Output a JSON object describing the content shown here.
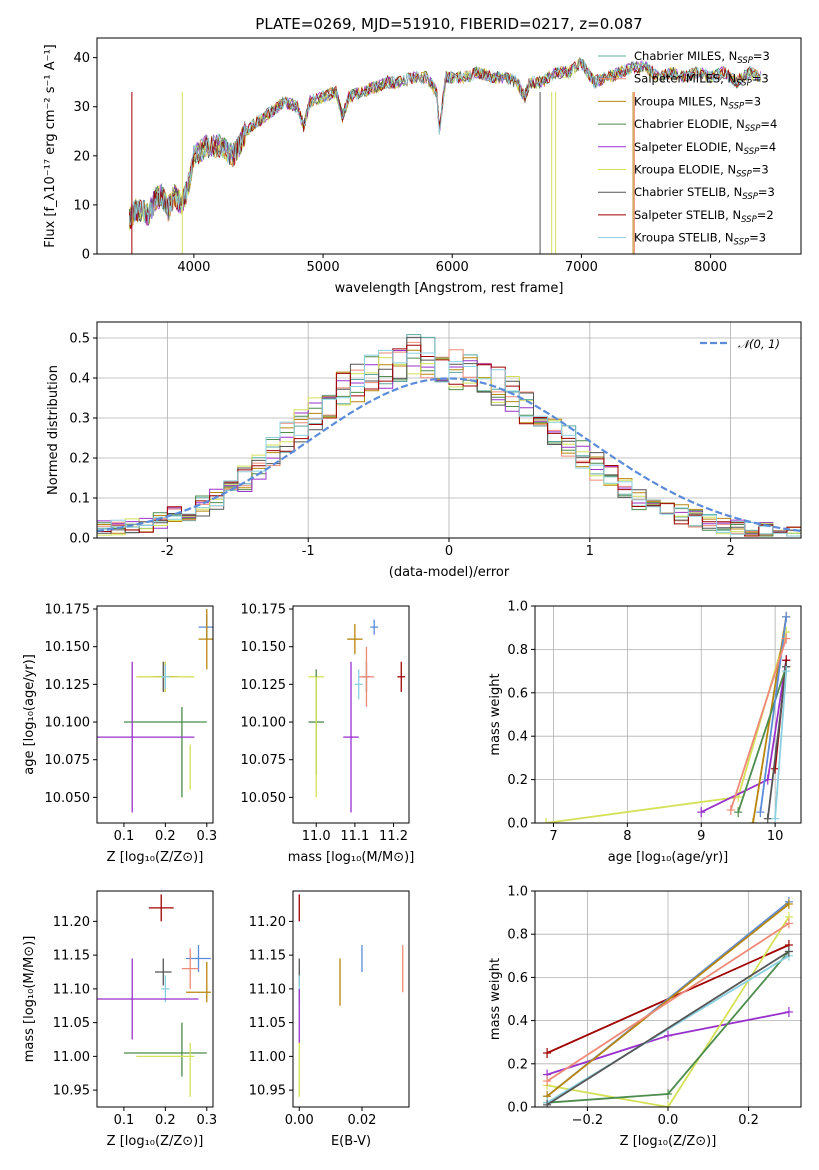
{
  "figure_title": "PLATE=0269, MJD=51910, FIBERID=0217, z=0.087",
  "colors": {
    "c_miles": "#5aa8a0",
    "s_miles": "#ef8a78",
    "k_miles": "#b8860b",
    "c_elodie": "#4c8c4c",
    "s_elodie": "#9932cc",
    "k_elodie": "#d4e157",
    "c_stelib": "#555555",
    "s_stelib": "#a00000",
    "k_stelib": "#8ad0e0",
    "normal": "#5b8bd9"
  },
  "chart_data": [
    {
      "id": "spectrum",
      "type": "line",
      "title": "PLATE=0269, MJD=51910, FIBERID=0217, z=0.087",
      "xlabel": "wavelength [Angstrom, rest frame]",
      "ylabel": "Flux [f_λ10⁻¹⁷ erg cm⁻² s⁻¹ A⁻¹]",
      "xlim": [
        3250,
        8700
      ],
      "ylim": [
        0,
        44
      ],
      "xticks": [
        4000,
        5000,
        6000,
        7000,
        8000
      ],
      "yticks": [
        0,
        10,
        20,
        30,
        40
      ],
      "legend_position": "top-right",
      "legend": [
        {
          "label": "Chabrier MILES, N",
          "sub": "SSP",
          "suffix": "=3",
          "color": "c_miles"
        },
        {
          "label": "Salpeter MILES, N",
          "sub": "SSP",
          "suffix": "=3",
          "color": "s_miles"
        },
        {
          "label": "Kroupa MILES, N",
          "sub": "SSP",
          "suffix": "=3",
          "color": "k_miles"
        },
        {
          "label": "Chabrier ELODIE, N",
          "sub": "SSP",
          "suffix": "=4",
          "color": "c_elodie"
        },
        {
          "label": "Salpeter ELODIE, N",
          "sub": "SSP",
          "suffix": "=4",
          "color": "s_elodie"
        },
        {
          "label": "Kroupa ELODIE, N",
          "sub": "SSP",
          "suffix": "=3",
          "color": "k_elodie"
        },
        {
          "label": "Chabrier STELIB, N",
          "sub": "SSP",
          "suffix": "=3",
          "color": "c_stelib"
        },
        {
          "label": "Salpeter STELIB, N",
          "sub": "SSP",
          "suffix": "=2",
          "color": "s_stelib"
        },
        {
          "label": "Kroupa STELIB, N",
          "sub": "SSP",
          "suffix": "=3",
          "color": "k_stelib"
        }
      ],
      "spectrum_points": [
        [
          3500,
          7
        ],
        [
          3550,
          9
        ],
        [
          3600,
          9
        ],
        [
          3650,
          8
        ],
        [
          3700,
          11
        ],
        [
          3750,
          12
        ],
        [
          3800,
          9
        ],
        [
          3850,
          12
        ],
        [
          3900,
          10
        ],
        [
          3950,
          13
        ],
        [
          4000,
          20
        ],
        [
          4100,
          22
        ],
        [
          4200,
          22
        ],
        [
          4300,
          20
        ],
        [
          4350,
          22
        ],
        [
          4400,
          25
        ],
        [
          4500,
          27
        ],
        [
          4600,
          29
        ],
        [
          4700,
          31
        ],
        [
          4800,
          30
        ],
        [
          4850,
          26
        ],
        [
          4900,
          31
        ],
        [
          5000,
          32
        ],
        [
          5100,
          33
        ],
        [
          5150,
          28
        ],
        [
          5200,
          32
        ],
        [
          5300,
          33
        ],
        [
          5400,
          34
        ],
        [
          5500,
          35
        ],
        [
          5600,
          35
        ],
        [
          5700,
          36
        ],
        [
          5800,
          36
        ],
        [
          5880,
          33
        ],
        [
          5900,
          25
        ],
        [
          5950,
          36
        ],
        [
          6000,
          36
        ],
        [
          6100,
          36
        ],
        [
          6200,
          37
        ],
        [
          6300,
          36
        ],
        [
          6400,
          36
        ],
        [
          6500,
          35
        ],
        [
          6563,
          32
        ],
        [
          6600,
          35
        ],
        [
          6700,
          35
        ],
        [
          6800,
          37
        ],
        [
          6900,
          37
        ],
        [
          7000,
          39
        ],
        [
          7050,
          37
        ],
        [
          7100,
          35
        ],
        [
          7200,
          36
        ],
        [
          7300,
          37
        ],
        [
          7400,
          38
        ],
        [
          7500,
          38
        ],
        [
          7600,
          36
        ],
        [
          7700,
          37
        ],
        [
          7800,
          36
        ],
        [
          7900,
          37
        ],
        [
          8000,
          36
        ],
        [
          8100,
          37
        ],
        [
          8200,
          35
        ],
        [
          8300,
          37
        ],
        [
          8400,
          36
        ]
      ],
      "drop_lines": [
        {
          "x": 3520,
          "color": "s_stelib"
        },
        {
          "x": 3910,
          "color": "k_elodie"
        },
        {
          "x": 6680,
          "color": "c_stelib"
        },
        {
          "x": 6770,
          "color": "k_elodie"
        },
        {
          "x": 6800,
          "color": "k_elodie"
        },
        {
          "x": 7400,
          "color": "k_miles"
        },
        {
          "x": 7410,
          "color": "s_miles"
        }
      ]
    },
    {
      "id": "residuals",
      "type": "line",
      "xlabel": "(data-model)/error",
      "ylabel": "Normed distribution",
      "xlim": [
        -2.5,
        2.5
      ],
      "ylim": [
        0,
        0.54
      ],
      "xticks": [
        -2,
        -1,
        0,
        1,
        2
      ],
      "yticks": [
        0.0,
        0.1,
        0.2,
        0.3,
        0.4,
        0.5
      ],
      "grid": true,
      "legend_position": "top-right",
      "legend": [
        {
          "label": "𝒩(0, 1)",
          "color": "normal"
        }
      ],
      "hist_base": [
        0.025,
        0.025,
        0.03,
        0.035,
        0.045,
        0.055,
        0.065,
        0.08,
        0.1,
        0.125,
        0.15,
        0.18,
        0.215,
        0.25,
        0.28,
        0.31,
        0.34,
        0.37,
        0.39,
        0.41,
        0.42,
        0.44,
        0.46,
        0.45,
        0.44,
        0.42,
        0.41,
        0.4,
        0.38,
        0.36,
        0.33,
        0.3,
        0.27,
        0.24,
        0.21,
        0.18,
        0.15,
        0.12,
        0.1,
        0.08,
        0.07,
        0.06,
        0.05,
        0.04,
        0.03,
        0.025,
        0.02,
        0.02,
        0.015,
        0.015
      ]
    },
    {
      "id": "age_vs_Z",
      "type": "scatter",
      "xlabel": "Z [log₁₀(Z/Z⊙)]",
      "ylabel": "age  [log₁₀(age/yr)]",
      "xlim": [
        0.035,
        0.315
      ],
      "ylim": [
        10.033,
        10.177
      ],
      "xticks": [
        0.1,
        0.2,
        0.3
      ],
      "yticks": [
        10.05,
        10.075,
        10.1,
        10.125,
        10.15,
        10.175
      ],
      "points": [
        {
          "x": 0.3,
          "y": 10.163,
          "xerr": 0.02,
          "yerr": 0.008,
          "color": "normal"
        },
        {
          "x": 0.3,
          "y": 10.155,
          "xerr": 0.02,
          "yerr": 0.02,
          "color": "k_miles"
        },
        {
          "x": 0.2,
          "y": 10.13,
          "xerr": 0.03,
          "yerr": 0.01,
          "color": "s_stelib"
        },
        {
          "x": 0.195,
          "y": 10.13,
          "xerr": 0.01,
          "yerr": 0.01,
          "color": "c_stelib"
        },
        {
          "x": 0.2,
          "y": 10.13,
          "xerr": 0.07,
          "yerr": 0.01,
          "color": "k_elodie"
        },
        {
          "x": 0.2,
          "y": 10.13,
          "xerr": 0.01,
          "yerr": 0.008,
          "color": "k_stelib"
        },
        {
          "x": 0.2,
          "y": 10.1,
          "xerr": 0.1,
          "yerr": 0.0,
          "color": "c_elodie"
        },
        {
          "x": 0.24,
          "y": 10.08,
          "xerr": 0.0,
          "yerr": 0.03,
          "color": "c_elodie"
        },
        {
          "x": 0.12,
          "y": 10.09,
          "xerr": 0.15,
          "yerr": 0.05,
          "color": "s_elodie"
        },
        {
          "x": 0.26,
          "y": 10.07,
          "xerr": 0.0,
          "yerr": 0.015,
          "color": "k_elodie"
        }
      ]
    },
    {
      "id": "age_vs_mass",
      "type": "scatter",
      "xlabel": "mass [log₁₀(M/M⊙)]",
      "ylabel": "",
      "xlim": [
        10.94,
        11.24
      ],
      "ylim": [
        10.033,
        10.177
      ],
      "xticks": [
        11.0,
        11.1,
        11.2
      ],
      "yticks": [
        10.05,
        10.075,
        10.1,
        10.125,
        10.15,
        10.175
      ],
      "points": [
        {
          "x": 11.15,
          "y": 10.163,
          "xerr": 0.01,
          "yerr": 0.005,
          "color": "normal"
        },
        {
          "x": 11.1,
          "y": 10.155,
          "xerr": 0.02,
          "yerr": 0.01,
          "color": "k_miles"
        },
        {
          "x": 11.22,
          "y": 10.13,
          "xerr": 0.01,
          "yerr": 0.01,
          "color": "s_stelib"
        },
        {
          "x": 11.13,
          "y": 10.13,
          "xerr": 0.01,
          "yerr": 0.01,
          "color": "c_stelib"
        },
        {
          "x": 11.13,
          "y": 10.13,
          "xerr": 0.02,
          "yerr": 0.02,
          "color": "s_miles"
        },
        {
          "x": 11.11,
          "y": 10.125,
          "xerr": 0.01,
          "yerr": 0.01,
          "color": "k_stelib"
        },
        {
          "x": 11.0,
          "y": 10.13,
          "xerr": 0.02,
          "yerr": 0.0,
          "color": "k_elodie"
        },
        {
          "x": 11.0,
          "y": 10.1,
          "xerr": 0.02,
          "yerr": 0.035,
          "color": "c_elodie"
        },
        {
          "x": 11.09,
          "y": 10.09,
          "xerr": 0.02,
          "yerr": 0.05,
          "color": "s_elodie"
        },
        {
          "x": 11.0,
          "y": 10.09,
          "xerr": 0.0,
          "yerr": 0.04,
          "color": "k_elodie"
        }
      ]
    },
    {
      "id": "mw_vs_age",
      "type": "line",
      "xlabel": "age  [log₁₀(age/yr)]",
      "ylabel": "mass weight",
      "xlim": [
        6.75,
        10.35
      ],
      "ylim": [
        0,
        1.0
      ],
      "xticks": [
        7,
        8,
        9,
        10
      ],
      "yticks": [
        0.0,
        0.2,
        0.4,
        0.6,
        0.8,
        1.0
      ],
      "grid": true,
      "series": [
        {
          "color": "k_elodie",
          "x": [
            6.9,
            9.5,
            10.15
          ],
          "y": [
            0.0,
            0.12,
            0.88
          ]
        },
        {
          "color": "s_elodie",
          "x": [
            9.0,
            9.9,
            10.15
          ],
          "y": [
            0.05,
            0.2,
            0.75
          ]
        },
        {
          "color": "k_miles",
          "x": [
            9.7,
            10.15
          ],
          "y": [
            0.0,
            0.95
          ]
        },
        {
          "color": "s_stelib",
          "x": [
            10.0,
            10.15
          ],
          "y": [
            0.25,
            0.75
          ]
        },
        {
          "color": "c_elodie",
          "x": [
            9.5,
            10.15
          ],
          "y": [
            0.05,
            0.72
          ]
        },
        {
          "color": "normal",
          "x": [
            9.8,
            10.15
          ],
          "y": [
            0.05,
            0.95
          ]
        },
        {
          "color": "s_miles",
          "x": [
            9.4,
            10.15
          ],
          "y": [
            0.06,
            0.85
          ]
        },
        {
          "color": "c_stelib",
          "x": [
            9.9,
            10.15
          ],
          "y": [
            0.02,
            0.72
          ]
        },
        {
          "color": "k_stelib",
          "x": [
            10.0,
            10.15
          ],
          "y": [
            0.02,
            0.7
          ]
        }
      ]
    },
    {
      "id": "mass_vs_Z",
      "type": "scatter",
      "xlabel": "Z [log₁₀(Z/Z⊙)]",
      "ylabel": "mass [log₁₀(M/M⊙)]",
      "xlim": [
        0.035,
        0.315
      ],
      "ylim": [
        10.925,
        11.245
      ],
      "xticks": [
        0.1,
        0.2,
        0.3
      ],
      "yticks": [
        10.95,
        11.0,
        11.05,
        11.1,
        11.15,
        11.2
      ],
      "points": [
        {
          "x": 0.19,
          "y": 11.22,
          "xerr": 0.03,
          "yerr": 0.02,
          "color": "s_stelib"
        },
        {
          "x": 0.28,
          "y": 11.145,
          "xerr": 0.03,
          "yerr": 0.02,
          "color": "normal"
        },
        {
          "x": 0.26,
          "y": 11.13,
          "xerr": 0.02,
          "yerr": 0.03,
          "color": "s_miles"
        },
        {
          "x": 0.195,
          "y": 11.125,
          "xerr": 0.02,
          "yerr": 0.02,
          "color": "c_stelib"
        },
        {
          "x": 0.3,
          "y": 11.11,
          "xerr": 0.0,
          "yerr": 0.03,
          "color": "k_miles"
        },
        {
          "x": 0.28,
          "y": 11.095,
          "xerr": 0.03,
          "yerr": 0.0,
          "color": "k_miles"
        },
        {
          "x": 0.2,
          "y": 11.1,
          "xerr": 0.01,
          "yerr": 0.02,
          "color": "k_stelib"
        },
        {
          "x": 0.12,
          "y": 11.085,
          "xerr": 0.16,
          "yerr": 0.06,
          "color": "s_elodie"
        },
        {
          "x": 0.2,
          "y": 11.005,
          "xerr": 0.1,
          "yerr": 0.0,
          "color": "c_elodie"
        },
        {
          "x": 0.24,
          "y": 11.01,
          "xerr": 0.0,
          "yerr": 0.04,
          "color": "c_elodie"
        },
        {
          "x": 0.2,
          "y": 11.0,
          "xerr": 0.07,
          "yerr": 0.0,
          "color": "k_elodie"
        },
        {
          "x": 0.26,
          "y": 10.98,
          "xerr": 0.0,
          "yerr": 0.04,
          "color": "k_elodie"
        }
      ]
    },
    {
      "id": "mass_vs_ebv",
      "type": "scatter",
      "xlabel": "E(B-V)",
      "ylabel": "",
      "xlim": [
        -0.002,
        0.035
      ],
      "ylim": [
        10.925,
        11.245
      ],
      "xticks": [
        0.0,
        0.02
      ],
      "yticks": [
        10.95,
        11.0,
        11.05,
        11.1,
        11.15,
        11.2
      ],
      "points": [
        {
          "x": 0.0,
          "y": 11.22,
          "xerr": 0,
          "yerr": 0.02,
          "color": "s_stelib"
        },
        {
          "x": 0.02,
          "y": 11.145,
          "xerr": 0,
          "yerr": 0.02,
          "color": "normal"
        },
        {
          "x": 0.013,
          "y": 11.11,
          "xerr": 0,
          "yerr": 0.035,
          "color": "k_miles"
        },
        {
          "x": 0.033,
          "y": 11.13,
          "xerr": 0,
          "yerr": 0.035,
          "color": "s_miles"
        },
        {
          "x": 0.0,
          "y": 11.125,
          "xerr": 0,
          "yerr": 0.02,
          "color": "c_stelib"
        },
        {
          "x": 0.0,
          "y": 11.1,
          "xerr": 0,
          "yerr": 0.02,
          "color": "k_stelib"
        },
        {
          "x": 0.0,
          "y": 11.06,
          "xerr": 0,
          "yerr": 0.04,
          "color": "s_elodie"
        },
        {
          "x": 0.0,
          "y": 10.98,
          "xerr": 0,
          "yerr": 0.04,
          "color": "k_elodie"
        }
      ]
    },
    {
      "id": "mw_vs_Z",
      "type": "line",
      "xlabel": "Z [log₁₀(Z/Z⊙)]",
      "ylabel": "mass weight",
      "xlim": [
        -0.33,
        0.33
      ],
      "ylim": [
        0,
        1.0
      ],
      "xticks": [
        -0.2,
        0.0,
        0.2
      ],
      "xticklabels": [
        "−0.2",
        "0.0",
        "0.2"
      ],
      "yticks": [
        0.0,
        0.2,
        0.4,
        0.6,
        0.8,
        1.0
      ],
      "grid": true,
      "series": [
        {
          "color": "s_stelib",
          "x": [
            -0.3,
            0.3
          ],
          "y": [
            0.25,
            0.75
          ]
        },
        {
          "color": "s_elodie",
          "x": [
            -0.3,
            0.0,
            0.3
          ],
          "y": [
            0.15,
            0.33,
            0.44
          ]
        },
        {
          "color": "k_elodie",
          "x": [
            -0.3,
            0.0,
            0.3
          ],
          "y": [
            0.1,
            0.0,
            0.88
          ]
        },
        {
          "color": "c_elodie",
          "x": [
            -0.3,
            0.0,
            0.3
          ],
          "y": [
            0.02,
            0.06,
            0.72
          ]
        },
        {
          "color": "normal",
          "x": [
            -0.3,
            0.3
          ],
          "y": [
            0.05,
            0.95
          ]
        },
        {
          "color": "k_miles",
          "x": [
            -0.3,
            0.3
          ],
          "y": [
            0.05,
            0.94
          ]
        },
        {
          "color": "s_miles",
          "x": [
            -0.3,
            0.3
          ],
          "y": [
            0.12,
            0.85
          ]
        },
        {
          "color": "k_stelib",
          "x": [
            -0.3,
            0.3
          ],
          "y": [
            0.02,
            0.7
          ]
        },
        {
          "color": "c_stelib",
          "x": [
            -0.3,
            0.3
          ],
          "y": [
            0.01,
            0.72
          ]
        }
      ]
    }
  ]
}
